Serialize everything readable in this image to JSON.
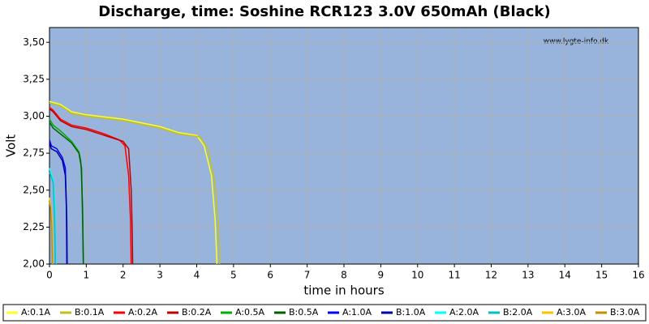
{
  "chart_data": {
    "type": "line",
    "title": "Discharge, time: Soshine RCR123 3.0V 650mAh (Black)",
    "watermark": "www.lygte-info.dk",
    "x_label": "time in hours",
    "y_label": "Volt",
    "xlim": [
      0,
      16
    ],
    "ylim": [
      2.0,
      3.6
    ],
    "xticks": [
      0,
      1,
      2,
      3,
      4,
      5,
      6,
      7,
      8,
      9,
      10,
      11,
      12,
      13,
      14,
      15,
      16
    ],
    "yticks": [
      {
        "value": 2.0,
        "label": "2,00"
      },
      {
        "value": 2.25,
        "label": "2,25"
      },
      {
        "value": 2.5,
        "label": "2,50"
      },
      {
        "value": 2.75,
        "label": "2,75"
      },
      {
        "value": 3.0,
        "label": "3,00"
      },
      {
        "value": 3.25,
        "label": "3,25"
      },
      {
        "value": 3.5,
        "label": "3,50"
      }
    ],
    "grid": true,
    "legend": "bottom",
    "series": [
      {
        "name": "A:0.1A",
        "color": "#ffff20",
        "x": [
          0,
          0.3,
          0.6,
          1,
          2,
          3,
          3.5,
          4,
          4.2,
          4.4,
          4.5,
          4.55
        ],
        "values": [
          3.1,
          3.08,
          3.03,
          3.01,
          2.98,
          2.93,
          2.89,
          2.87,
          2.8,
          2.6,
          2.3,
          2.0
        ]
      },
      {
        "name": "B:0.1A",
        "color": "#c0c020",
        "x": [
          0,
          0.3,
          0.6,
          1,
          2,
          3,
          3.5,
          4.1,
          4.3,
          4.5,
          4.6,
          4.62
        ],
        "values": [
          3.09,
          3.07,
          3.02,
          3.0,
          2.97,
          2.92,
          2.88,
          2.86,
          2.78,
          2.55,
          2.2,
          2.0
        ]
      },
      {
        "name": "A:0.2A",
        "color": "#ff0000",
        "x": [
          0,
          0.1,
          0.3,
          0.6,
          1,
          1.5,
          1.9,
          2.05,
          2.15,
          2.2,
          2.22
        ],
        "values": [
          3.06,
          3.04,
          2.98,
          2.94,
          2.92,
          2.88,
          2.84,
          2.8,
          2.6,
          2.3,
          2.0
        ]
      },
      {
        "name": "B:0.2A",
        "color": "#c00000",
        "x": [
          0,
          0.1,
          0.3,
          0.6,
          1,
          1.5,
          2.0,
          2.15,
          2.22,
          2.25,
          2.26
        ],
        "values": [
          3.05,
          3.03,
          2.97,
          2.93,
          2.91,
          2.87,
          2.83,
          2.78,
          2.5,
          2.2,
          2.0
        ]
      },
      {
        "name": "A:0.5A",
        "color": "#00b000",
        "x": [
          0,
          0.1,
          0.3,
          0.6,
          0.8,
          0.85,
          0.9,
          0.92
        ],
        "values": [
          2.98,
          2.94,
          2.9,
          2.83,
          2.76,
          2.7,
          2.4,
          2.0
        ]
      },
      {
        "name": "B:0.5A",
        "color": "#006000",
        "x": [
          0,
          0.1,
          0.3,
          0.6,
          0.8,
          0.87,
          0.9,
          0.92
        ],
        "values": [
          2.96,
          2.92,
          2.88,
          2.82,
          2.75,
          2.65,
          2.3,
          2.0
        ]
      },
      {
        "name": "A:1.0A",
        "color": "#0000ff",
        "x": [
          0,
          0.05,
          0.2,
          0.35,
          0.43,
          0.46,
          0.47
        ],
        "values": [
          2.84,
          2.8,
          2.78,
          2.72,
          2.65,
          2.4,
          2.0
        ]
      },
      {
        "name": "B:1.0A",
        "color": "#0000a0",
        "x": [
          0,
          0.05,
          0.2,
          0.35,
          0.43,
          0.47,
          0.48
        ],
        "values": [
          2.82,
          2.78,
          2.76,
          2.7,
          2.6,
          2.3,
          2.0
        ]
      },
      {
        "name": "A:2.0A",
        "color": "#00ffff",
        "x": [
          0,
          0.05,
          0.1,
          0.15,
          0.17
        ],
        "values": [
          2.65,
          2.6,
          2.58,
          2.4,
          2.0
        ]
      },
      {
        "name": "B:2.0A",
        "color": "#00c0c0",
        "x": [
          0,
          0.05,
          0.1,
          0.14,
          0.16
        ],
        "values": [
          2.62,
          2.59,
          2.55,
          2.3,
          2.0
        ]
      },
      {
        "name": "A:3.0A",
        "color": "#ffc000",
        "x": [
          0,
          0.03,
          0.07,
          0.09
        ],
        "values": [
          2.45,
          2.4,
          2.3,
          2.0
        ]
      },
      {
        "name": "B:3.0A",
        "color": "#c09000",
        "x": [
          0,
          0.03,
          0.06,
          0.08
        ],
        "values": [
          2.42,
          2.38,
          2.25,
          2.0
        ]
      }
    ]
  }
}
